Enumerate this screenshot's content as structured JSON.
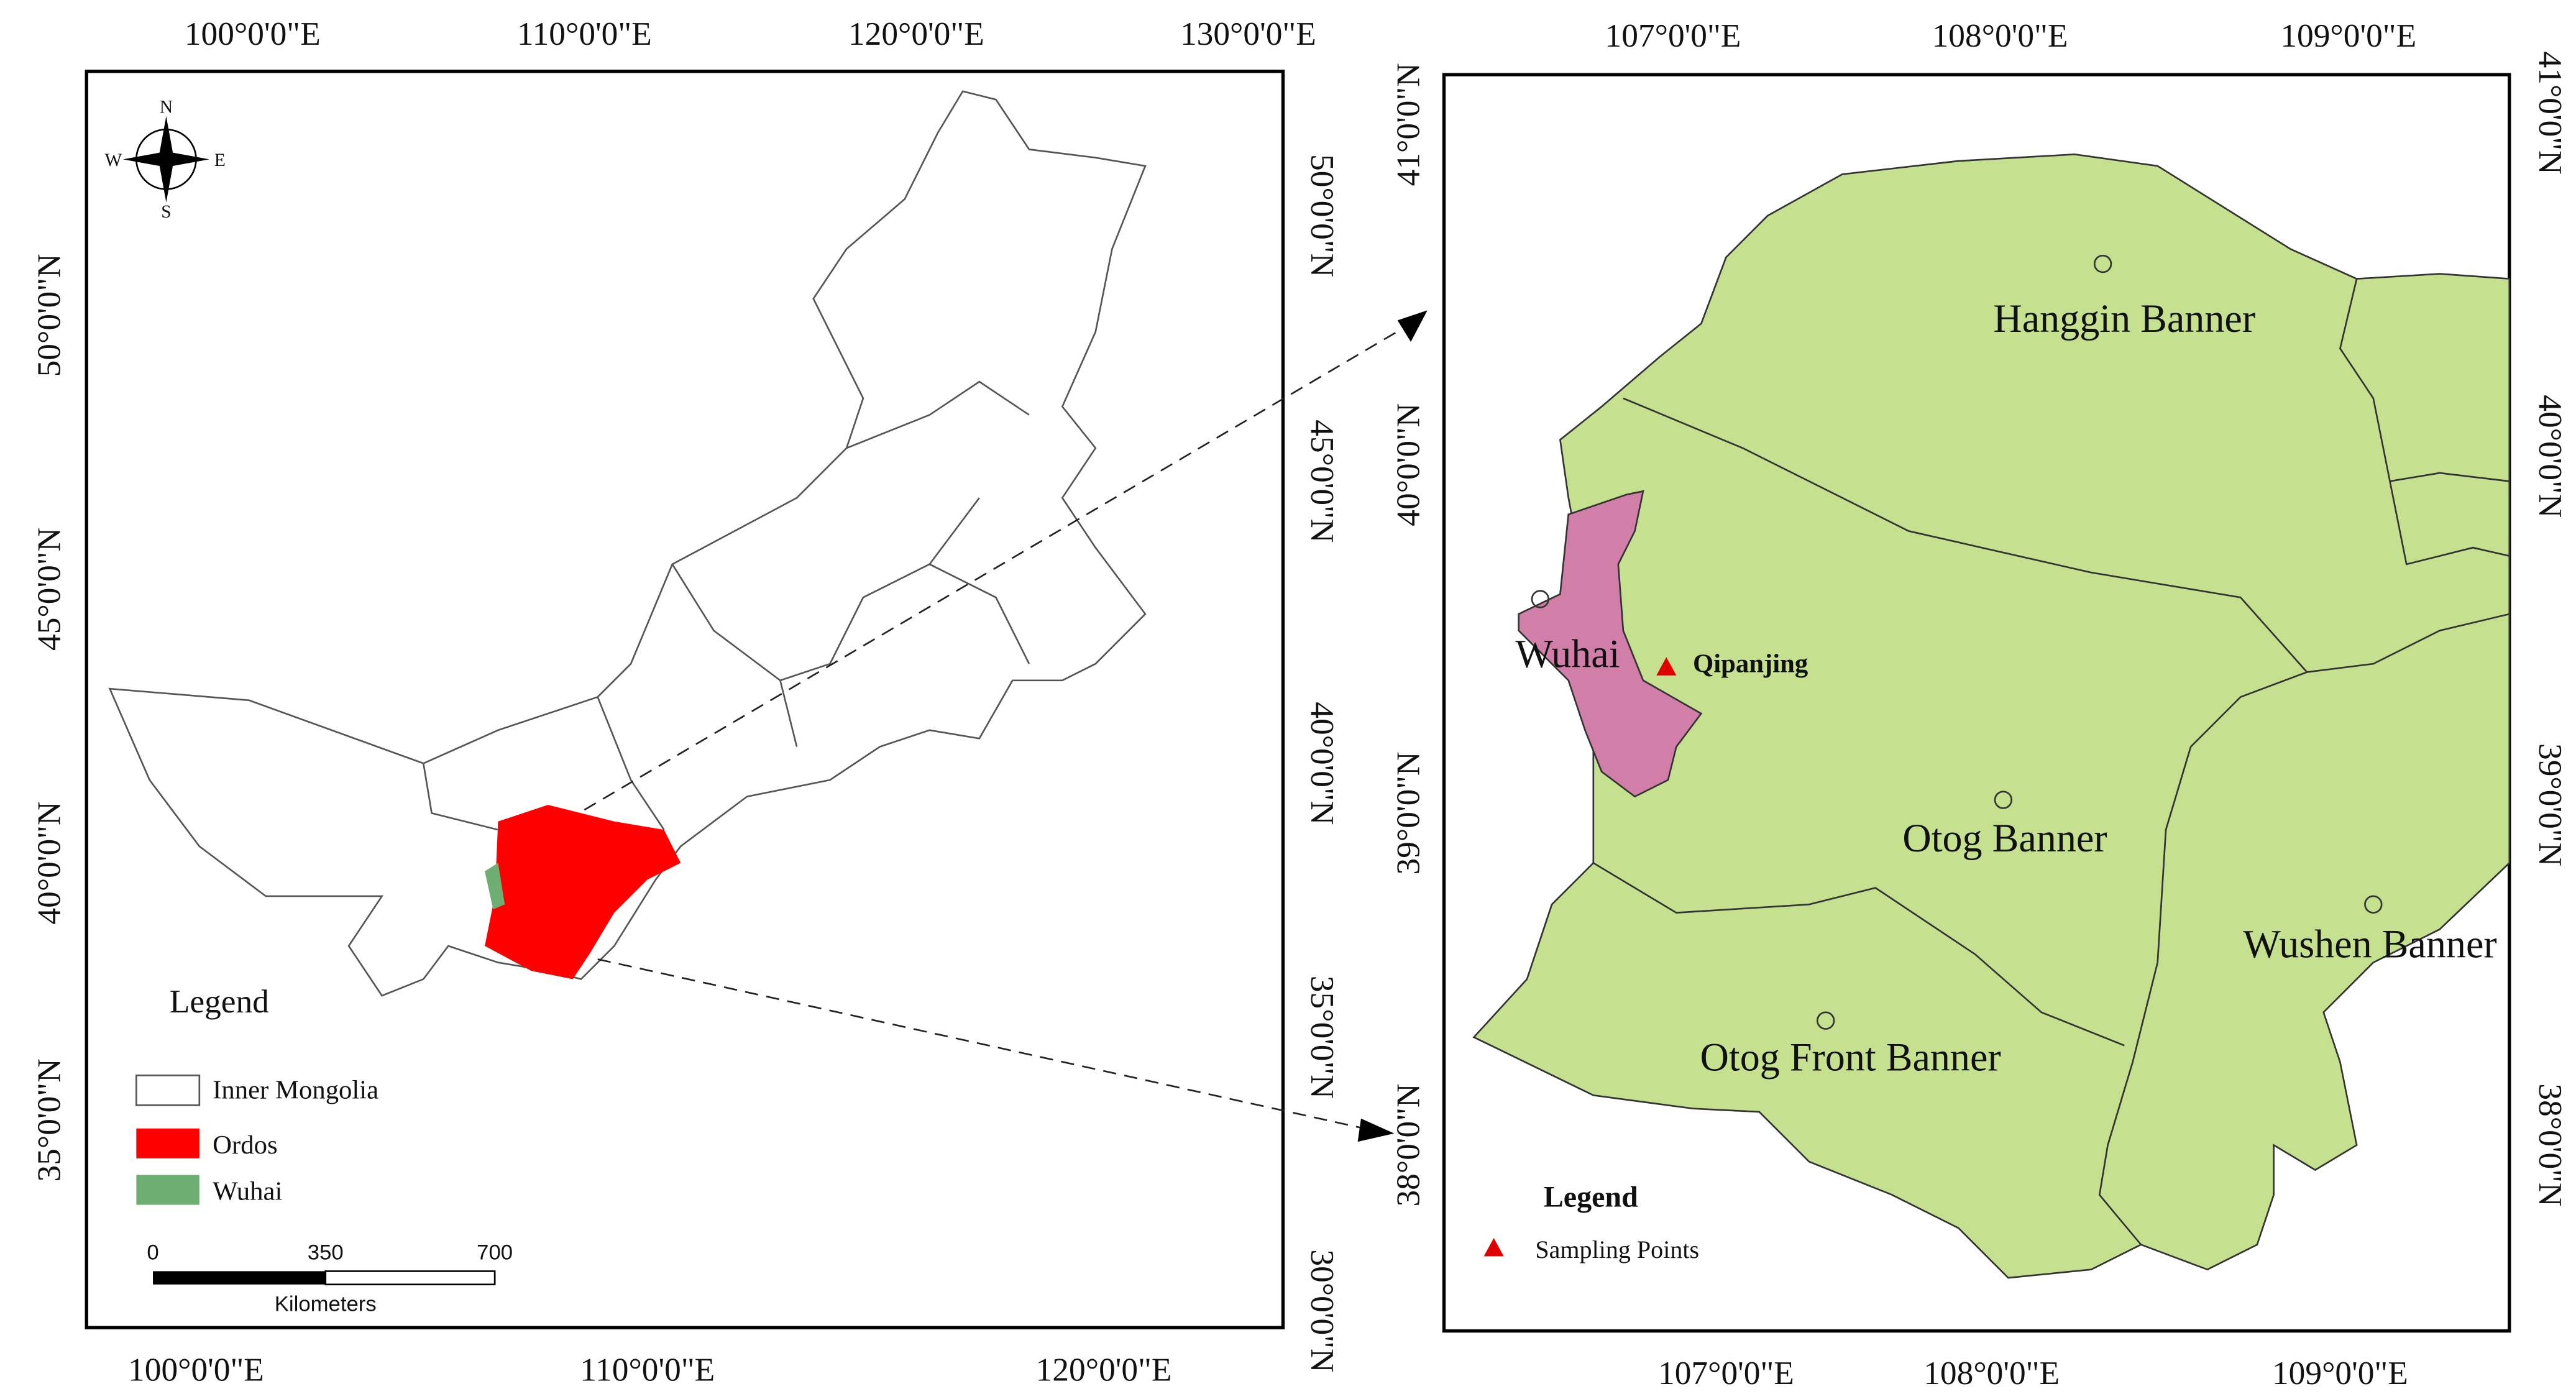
{
  "left_map": {
    "top_labels": [
      "100°0'0\"E",
      "110°0'0\"E",
      "120°0'0\"E",
      "130°0'0\"E"
    ],
    "bottom_labels": [
      "100°0'0\"E",
      "110°0'0\"E",
      "120°0'0\"E"
    ],
    "left_labels": [
      "50°0'0\"N",
      "45°0'0\"N",
      "40°0'0\"N",
      "35°0'0\"N"
    ],
    "right_labels": [
      "50°0'0\"N",
      "45°0'0\"N",
      "40°0'0\"N",
      "35°0'0\"N",
      "30°0'0\"N"
    ],
    "compass": {
      "n": "N",
      "s": "S",
      "e": "E",
      "w": "W"
    },
    "legend": {
      "title": "Legend",
      "items": [
        "Inner Mongolia",
        "Ordos",
        "Wuhai"
      ]
    },
    "scale_bar": {
      "ticks": [
        0,
        350,
        700
      ],
      "unit": "Kilometers"
    }
  },
  "right_map": {
    "top_labels": [
      "107°0'0\"E",
      "108°0'0\"E",
      "109°0'0\"E"
    ],
    "bottom_labels": [
      "107°0'0\"E",
      "108°0'0\"E",
      "109°0'0\"E"
    ],
    "left_labels": [
      "41°0'0\"N",
      "40°0'0\"N",
      "39°0'0\"N",
      "38°0'0\"N"
    ],
    "right_labels": [
      "41°0'0\"N",
      "40°0'0\"N",
      "39°0'0\"N",
      "38°0'0\"N"
    ],
    "places": [
      "Hanggin Banner",
      "Otog Banner",
      "Wushen Banner",
      "Otog Front Banner",
      "Wuhai"
    ],
    "site": "Qipanjing",
    "legend": {
      "title": "Legend",
      "items": [
        "Sampling Points"
      ]
    }
  }
}
